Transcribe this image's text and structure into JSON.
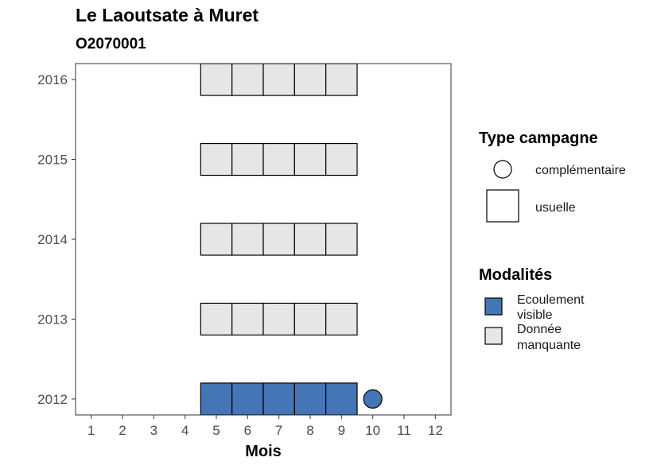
{
  "chart_data": {
    "type": "scatter",
    "title": "Le Laoutsate à Muret",
    "subtitle": "O2070001",
    "xlabel": "Mois",
    "ylabel": "",
    "x_ticks": [
      "1",
      "2",
      "3",
      "4",
      "5",
      "6",
      "7",
      "8",
      "9",
      "10",
      "11",
      "12"
    ],
    "y_ticks": [
      "2012",
      "2013",
      "2014",
      "2015",
      "2016"
    ],
    "xlim": [
      0.5,
      12.5
    ],
    "ylim": [
      2011.8,
      2016.2
    ],
    "grid": false,
    "legend_position": "right",
    "legend_shape": {
      "title": "Type campagne",
      "items": [
        {
          "label": "complémentaire",
          "shape": "circle"
        },
        {
          "label": "usuelle",
          "shape": "square"
        }
      ]
    },
    "legend_fill": {
      "title": "Modalités",
      "items": [
        {
          "label_line1": "Ecoulement",
          "label_line2": "visible",
          "color": "#4575b4"
        },
        {
          "label_line1": "Donnée",
          "label_line2": "manquante",
          "color": "#e6e6e6"
        }
      ]
    },
    "points": [
      {
        "month": 5,
        "year": 2012,
        "shape": "square",
        "modalite": "Ecoulement visible"
      },
      {
        "month": 6,
        "year": 2012,
        "shape": "square",
        "modalite": "Ecoulement visible"
      },
      {
        "month": 7,
        "year": 2012,
        "shape": "square",
        "modalite": "Ecoulement visible"
      },
      {
        "month": 8,
        "year": 2012,
        "shape": "square",
        "modalite": "Ecoulement visible"
      },
      {
        "month": 9,
        "year": 2012,
        "shape": "square",
        "modalite": "Ecoulement visible"
      },
      {
        "month": 10,
        "year": 2012,
        "shape": "circle",
        "modalite": "Ecoulement visible"
      },
      {
        "month": 5,
        "year": 2013,
        "shape": "square",
        "modalite": "Donnée manquante"
      },
      {
        "month": 6,
        "year": 2013,
        "shape": "square",
        "modalite": "Donnée manquante"
      },
      {
        "month": 7,
        "year": 2013,
        "shape": "square",
        "modalite": "Donnée manquante"
      },
      {
        "month": 8,
        "year": 2013,
        "shape": "square",
        "modalite": "Donnée manquante"
      },
      {
        "month": 9,
        "year": 2013,
        "shape": "square",
        "modalite": "Donnée manquante"
      },
      {
        "month": 5,
        "year": 2014,
        "shape": "square",
        "modalite": "Donnée manquante"
      },
      {
        "month": 6,
        "year": 2014,
        "shape": "square",
        "modalite": "Donnée manquante"
      },
      {
        "month": 7,
        "year": 2014,
        "shape": "square",
        "modalite": "Donnée manquante"
      },
      {
        "month": 8,
        "year": 2014,
        "shape": "square",
        "modalite": "Donnée manquante"
      },
      {
        "month": 9,
        "year": 2014,
        "shape": "square",
        "modalite": "Donnée manquante"
      },
      {
        "month": 5,
        "year": 2015,
        "shape": "square",
        "modalite": "Donnée manquante"
      },
      {
        "month": 6,
        "year": 2015,
        "shape": "square",
        "modalite": "Donnée manquante"
      },
      {
        "month": 7,
        "year": 2015,
        "shape": "square",
        "modalite": "Donnée manquante"
      },
      {
        "month": 8,
        "year": 2015,
        "shape": "square",
        "modalite": "Donnée manquante"
      },
      {
        "month": 9,
        "year": 2015,
        "shape": "square",
        "modalite": "Donnée manquante"
      },
      {
        "month": 5,
        "year": 2016,
        "shape": "square",
        "modalite": "Donnée manquante"
      },
      {
        "month": 6,
        "year": 2016,
        "shape": "square",
        "modalite": "Donnée manquante"
      },
      {
        "month": 7,
        "year": 2016,
        "shape": "square",
        "modalite": "Donnée manquante"
      },
      {
        "month": 8,
        "year": 2016,
        "shape": "square",
        "modalite": "Donnée manquante"
      },
      {
        "month": 9,
        "year": 2016,
        "shape": "square",
        "modalite": "Donnée manquante"
      }
    ]
  }
}
